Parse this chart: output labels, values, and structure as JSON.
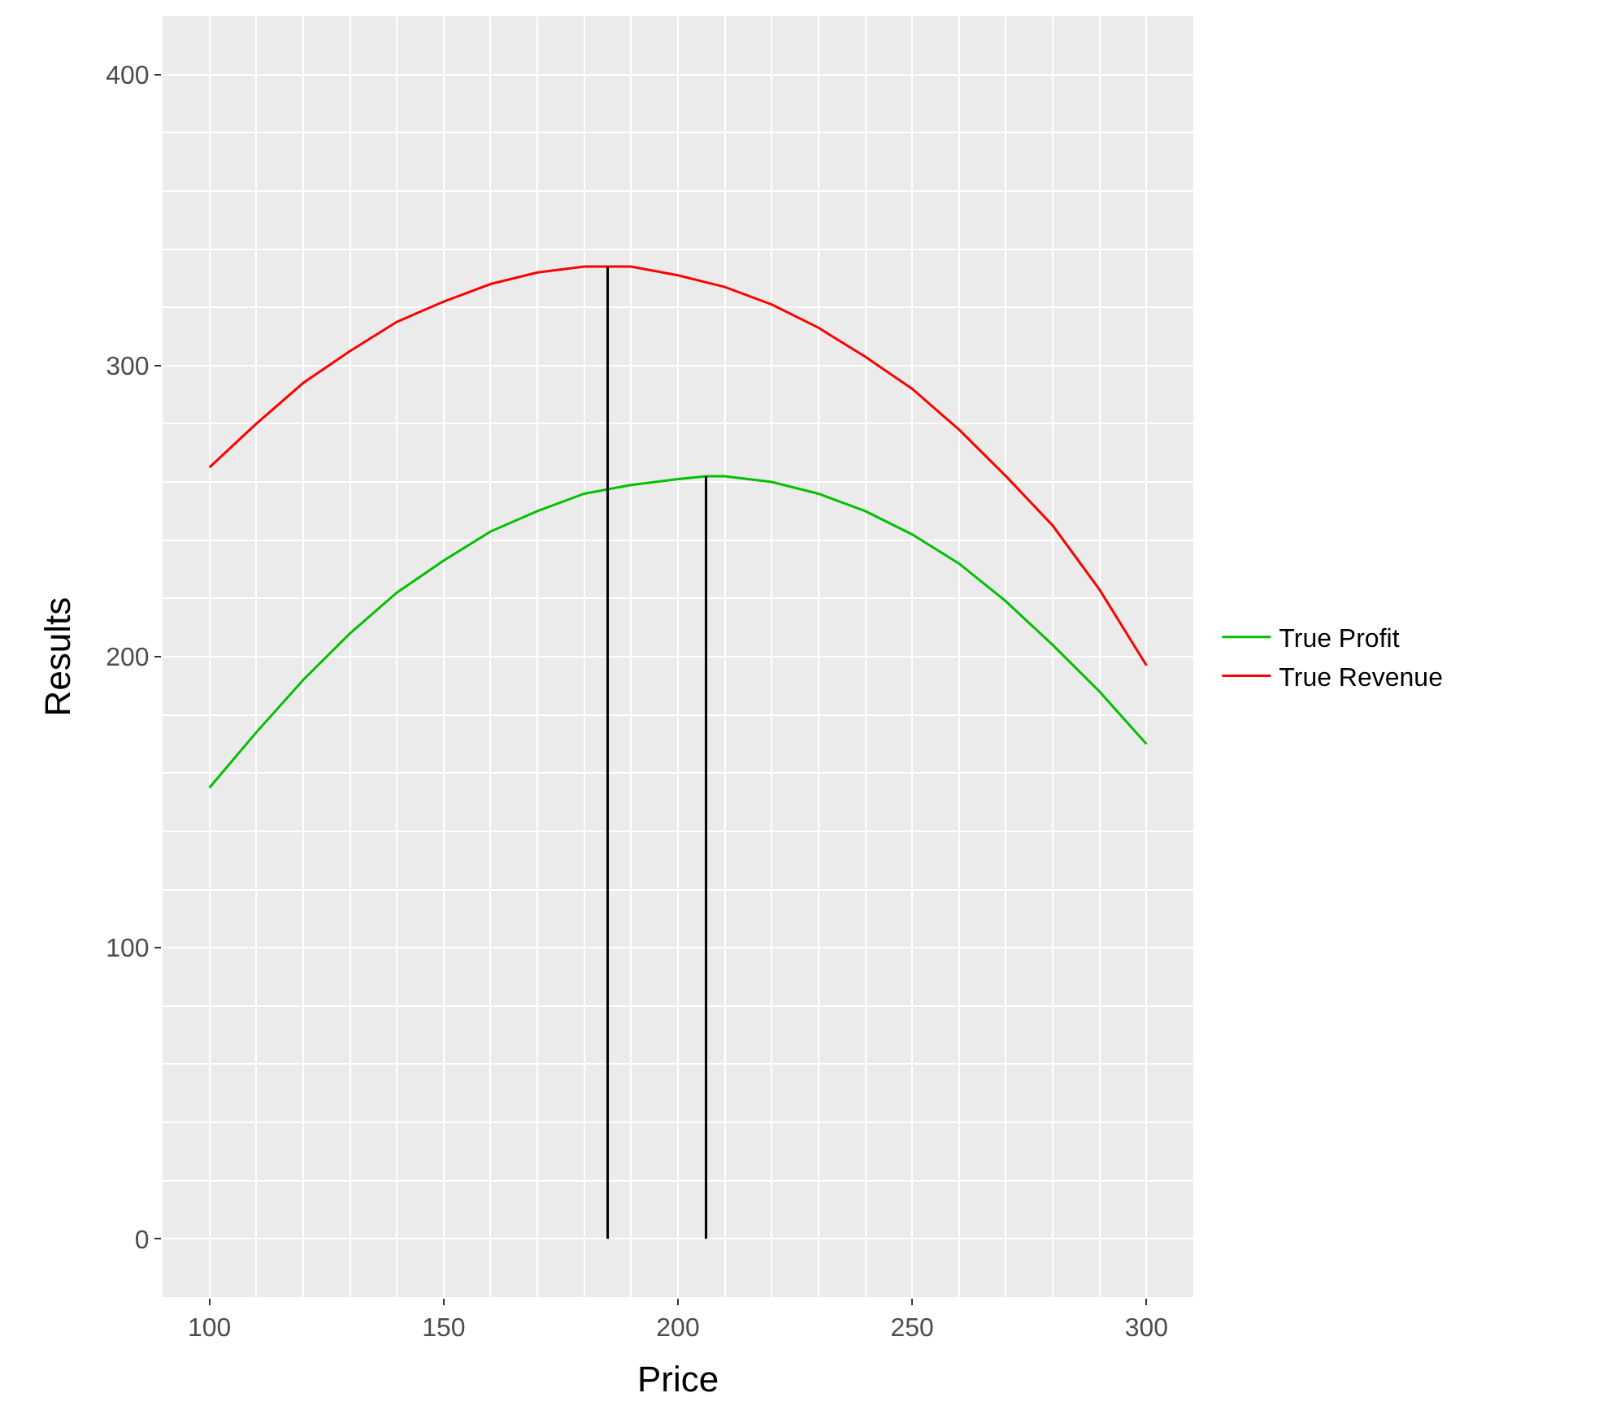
{
  "chart_data": {
    "type": "line",
    "xlabel": "Price",
    "ylabel": "Results",
    "xlim": [
      90,
      310
    ],
    "ylim": [
      -20,
      420
    ],
    "xticks": [
      100,
      150,
      200,
      250,
      300
    ],
    "yticks": [
      0,
      100,
      200,
      300,
      400
    ],
    "grid": true,
    "legend": "right",
    "marker": "none",
    "line_style": "solid",
    "series": [
      {
        "name": "True Profit",
        "color": "#00c000",
        "x": [
          100,
          110,
          120,
          130,
          140,
          150,
          160,
          170,
          180,
          190,
          200,
          206,
          210,
          220,
          230,
          240,
          250,
          260,
          270,
          280,
          290,
          300
        ],
        "values": [
          155,
          174,
          192,
          208,
          222,
          233,
          243,
          250,
          256,
          259,
          261,
          262,
          262,
          260,
          256,
          250,
          242,
          232,
          219,
          204,
          188,
          170
        ]
      },
      {
        "name": "True Revenue",
        "color": "#ff0000",
        "x": [
          100,
          110,
          120,
          130,
          140,
          150,
          160,
          170,
          180,
          185,
          190,
          200,
          210,
          220,
          230,
          240,
          250,
          260,
          270,
          280,
          290,
          300
        ],
        "values": [
          265,
          280,
          294,
          305,
          315,
          322,
          328,
          332,
          334,
          334,
          334,
          331,
          327,
          321,
          313,
          303,
          292,
          278,
          262,
          245,
          223,
          197
        ]
      },
      {
        "color": "#000000",
        "x": [
          185,
          185
        ],
        "values": [
          0,
          334
        ]
      },
      {
        "color": "#000000",
        "x": [
          206,
          206
        ],
        "values": [
          0,
          262
        ]
      }
    ]
  }
}
